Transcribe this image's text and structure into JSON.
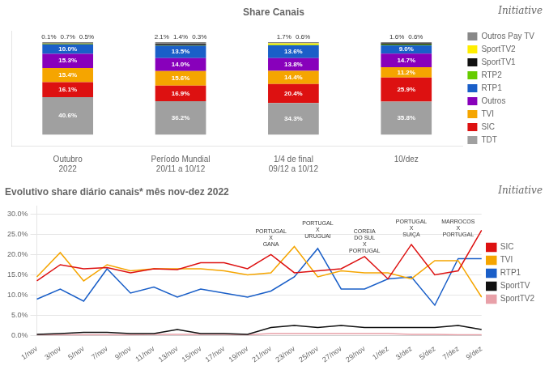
{
  "chart_data": [
    {
      "type": "bar",
      "title": "Share Canais",
      "stacked": true,
      "categories": [
        "Outubro\n2022",
        "Período Mundial\n20/11 a 10/12",
        "1/4 de final\n09/12 a 10/12",
        "10/dez"
      ],
      "series": [
        {
          "name": "TDT",
          "color": "#a0a0a0",
          "values": [
            40.6,
            36.2,
            34.3,
            35.8
          ],
          "value_labels": [
            "40.6%",
            "36.2%",
            "34.3%",
            "35.8%"
          ]
        },
        {
          "name": "SIC",
          "color": "#dd1111",
          "values": [
            16.1,
            16.9,
            20.4,
            25.9
          ],
          "value_labels": [
            "16.1%",
            "16.9%",
            "20.4%",
            "25.9%"
          ]
        },
        {
          "name": "TVI",
          "color": "#f5a500",
          "values": [
            15.4,
            15.6,
            14.4,
            11.2
          ],
          "value_labels": [
            "15.4%",
            "15.6%",
            "14.4%",
            "11.2%"
          ]
        },
        {
          "name": "Outros",
          "color": "#8800bb",
          "values": [
            15.3,
            14.0,
            13.8,
            14.7
          ],
          "value_labels": [
            "15.3%",
            "14.0%",
            "13.8%",
            "14.7%"
          ]
        },
        {
          "name": "RTP1",
          "color": "#1a5fc8",
          "values": [
            10.0,
            13.5,
            13.6,
            9.0
          ],
          "value_labels": [
            "10.0%",
            "13.5%",
            "13.6%",
            "9.0%"
          ]
        },
        {
          "name": "RTP2",
          "color": "#66cc00",
          "values": [
            0.5,
            0.3,
            0.6,
            0.6
          ],
          "value_labels": [
            "0.5%",
            "0.3%",
            "0.6%",
            "0.6%"
          ]
        },
        {
          "name": "SportTV1",
          "color": "#111111",
          "values": [
            0.7,
            1.4,
            0.0,
            1.6
          ],
          "value_labels": [
            "0.7%",
            "1.4%",
            null,
            "1.6%"
          ]
        },
        {
          "name": "SportTV2",
          "color": "#ffee00",
          "values": [
            0.1,
            0.0,
            1.7,
            0.0
          ],
          "value_labels": [
            "0.1%",
            null,
            "1.7%",
            null
          ]
        },
        {
          "name": "Outros Pay TV",
          "color": "#888888",
          "values": [
            1.3,
            2.1,
            1.2,
            1.2
          ],
          "value_labels": [
            null,
            "2.1%",
            null,
            null
          ]
        }
      ],
      "ylim": [
        -12,
        112
      ],
      "tick_labels": "x",
      "grid": false,
      "legend": "right",
      "data_labels": true,
      "annotations": [
        {
          "text": "Initiative"
        }
      ]
    },
    {
      "type": "line",
      "title": "Evolutivo share diário canais* mês nov-dez 2022",
      "categories": [
        "1/nov",
        "3/nov",
        "5/nov",
        "7/nov",
        "9/nov",
        "11/nov",
        "13/nov",
        "15/nov",
        "17/nov",
        "19/nov",
        "21/nov",
        "23/nov",
        "25/nov",
        "27/nov",
        "29/nov",
        "1/dez",
        "3/dez",
        "5/dez",
        "7/dez",
        "9/dez"
      ],
      "series": [
        {
          "name": "SIC",
          "color": "#dd1111",
          "values": [
            13.5,
            17.5,
            16.5,
            16.8,
            15.5,
            16.5,
            16.3,
            18.0,
            18.0,
            16.5,
            20.0,
            15.5,
            16.0,
            16.5,
            19.5,
            14.0,
            22.5,
            15.0,
            16.0,
            26.0
          ]
        },
        {
          "name": "TVI",
          "color": "#f5a500",
          "values": [
            14.5,
            20.5,
            13.5,
            17.5,
            16.0,
            16.5,
            16.5,
            16.5,
            16.0,
            15.0,
            15.5,
            22.0,
            14.5,
            16.0,
            15.5,
            15.5,
            14.0,
            18.5,
            18.5,
            9.5
          ]
        },
        {
          "name": "RTP1",
          "color": "#1a5fc8",
          "values": [
            9.0,
            11.5,
            8.5,
            16.5,
            10.5,
            12.0,
            9.5,
            11.5,
            10.5,
            9.5,
            11.0,
            14.5,
            21.5,
            11.5,
            11.5,
            14.0,
            14.5,
            7.5,
            19.0,
            19.0
          ]
        },
        {
          "name": "SportTV",
          "color": "#111111",
          "values": [
            0.3,
            0.5,
            0.8,
            0.8,
            0.5,
            0.5,
            1.5,
            0.5,
            0.5,
            0.3,
            2.0,
            2.5,
            2.0,
            2.5,
            2.0,
            2.0,
            2.0,
            2.0,
            2.5,
            1.5
          ]
        },
        {
          "name": "SportTV2",
          "color": "#e8a0a8",
          "values": [
            0.2,
            0.2,
            0.2,
            0.2,
            0.2,
            0.3,
            0.3,
            0.3,
            0.3,
            0.2,
            0.5,
            0.5,
            0.5,
            0.5,
            0.5,
            0.5,
            0.3,
            0.3,
            0.2,
            0.2
          ]
        }
      ],
      "ylim": [
        0,
        32
      ],
      "yticks": [
        {
          "value": 0,
          "label": "0.0%"
        },
        {
          "value": 5,
          "label": "5.0%"
        },
        {
          "value": 10,
          "label": "10.0%"
        },
        {
          "value": 15,
          "label": "15.0%"
        },
        {
          "value": 20,
          "label": "20.0%"
        },
        {
          "value": 25,
          "label": "25.0%"
        },
        {
          "value": 30,
          "label": "30.0%"
        }
      ],
      "grid": true,
      "legend": "right",
      "annotations": [
        {
          "x": "21/nov",
          "y": 21.5,
          "text": "PORTUGAL\nX\nGANA"
        },
        {
          "x": "25/nov",
          "y": 23.5,
          "text": "PORTUGAL\nX\nURUGUAI"
        },
        {
          "x": "29/nov",
          "y": 20.0,
          "text": "COREIA\nDO SUL\nX\nPORTUGAL"
        },
        {
          "x": "3/dez",
          "y": 24.0,
          "text": "PORTUGAL\nX\nSUIÇA"
        },
        {
          "x": "7/dez",
          "y": 24.0,
          "text": "MARROCOS\nX\nPORTUGAL"
        },
        {
          "text": "Initiative"
        }
      ]
    }
  ]
}
